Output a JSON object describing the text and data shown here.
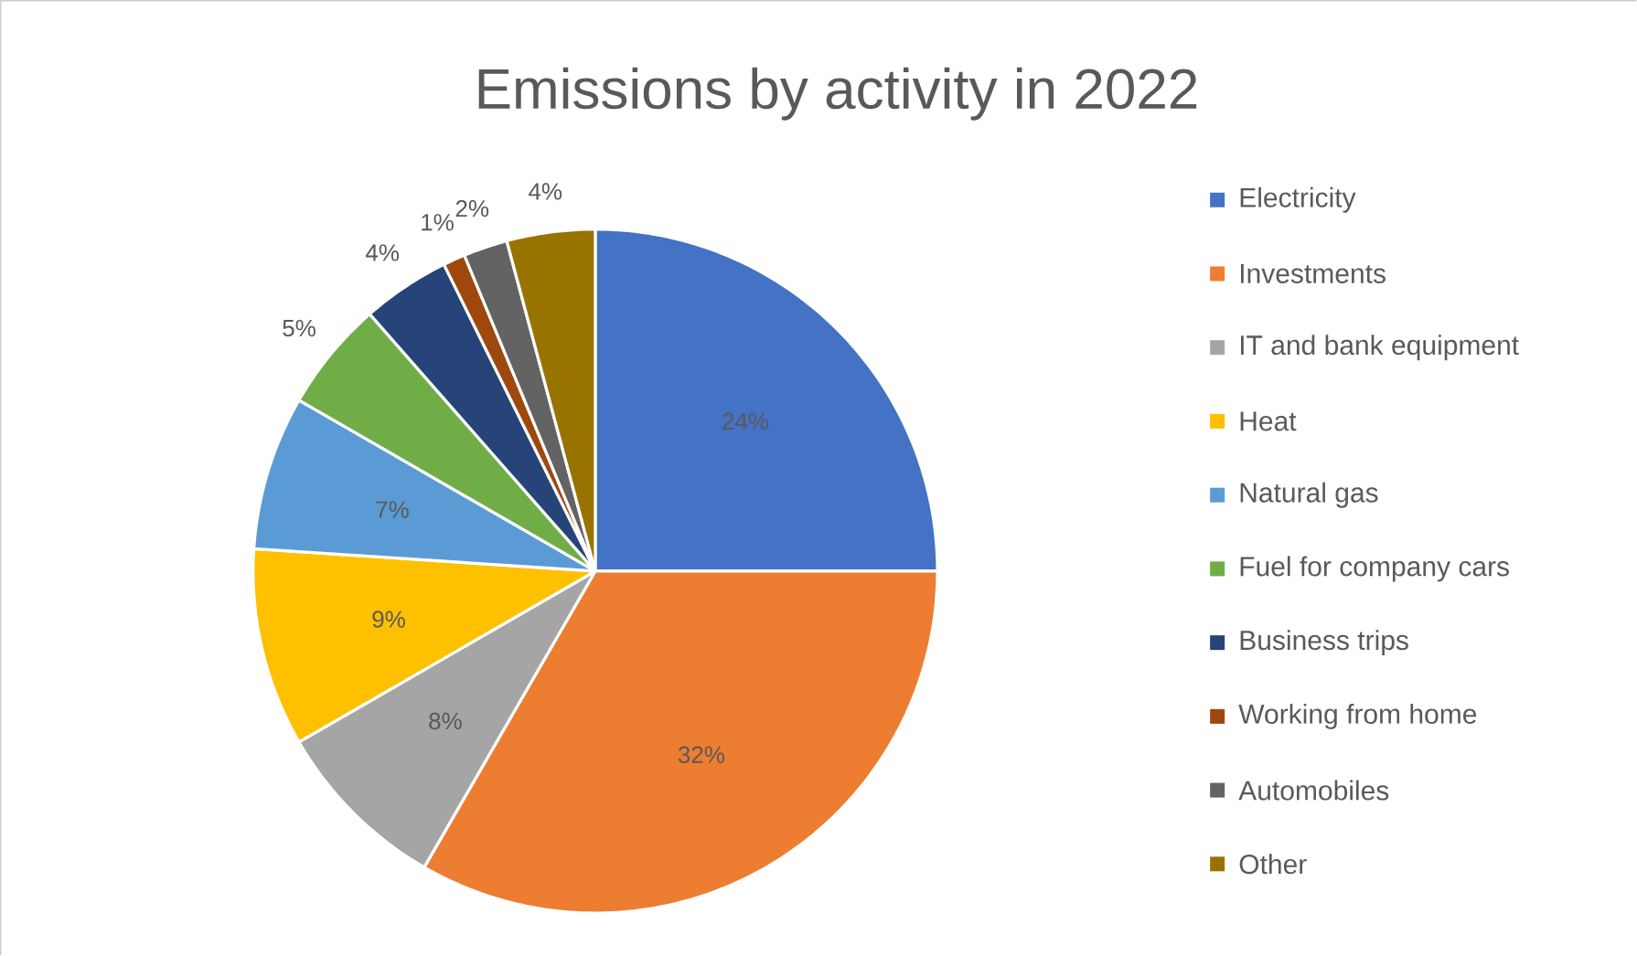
{
  "chart_data": {
    "type": "pie",
    "title": "Emissions by activity in 2022",
    "categories": [
      "Electricity",
      "Investments",
      "IT and bank equipment",
      "Heat",
      "Natural gas",
      "Fuel for company cars",
      "Business trips",
      "Working from home",
      "Automobiles",
      "Other"
    ],
    "values": [
      24,
      32,
      8,
      9,
      7,
      5,
      4,
      1,
      2,
      4
    ],
    "value_labels": [
      "24%",
      "32%",
      "8%",
      "9%",
      "7%",
      "5%",
      "4%",
      "1%",
      "2%",
      "4%"
    ],
    "colors": [
      "#4472c4",
      "#ed7d31",
      "#a5a5a5",
      "#ffc000",
      "#5b9bd5",
      "#70ad47",
      "#264478",
      "#9e480e",
      "#636363",
      "#997300"
    ],
    "legend": "right"
  }
}
